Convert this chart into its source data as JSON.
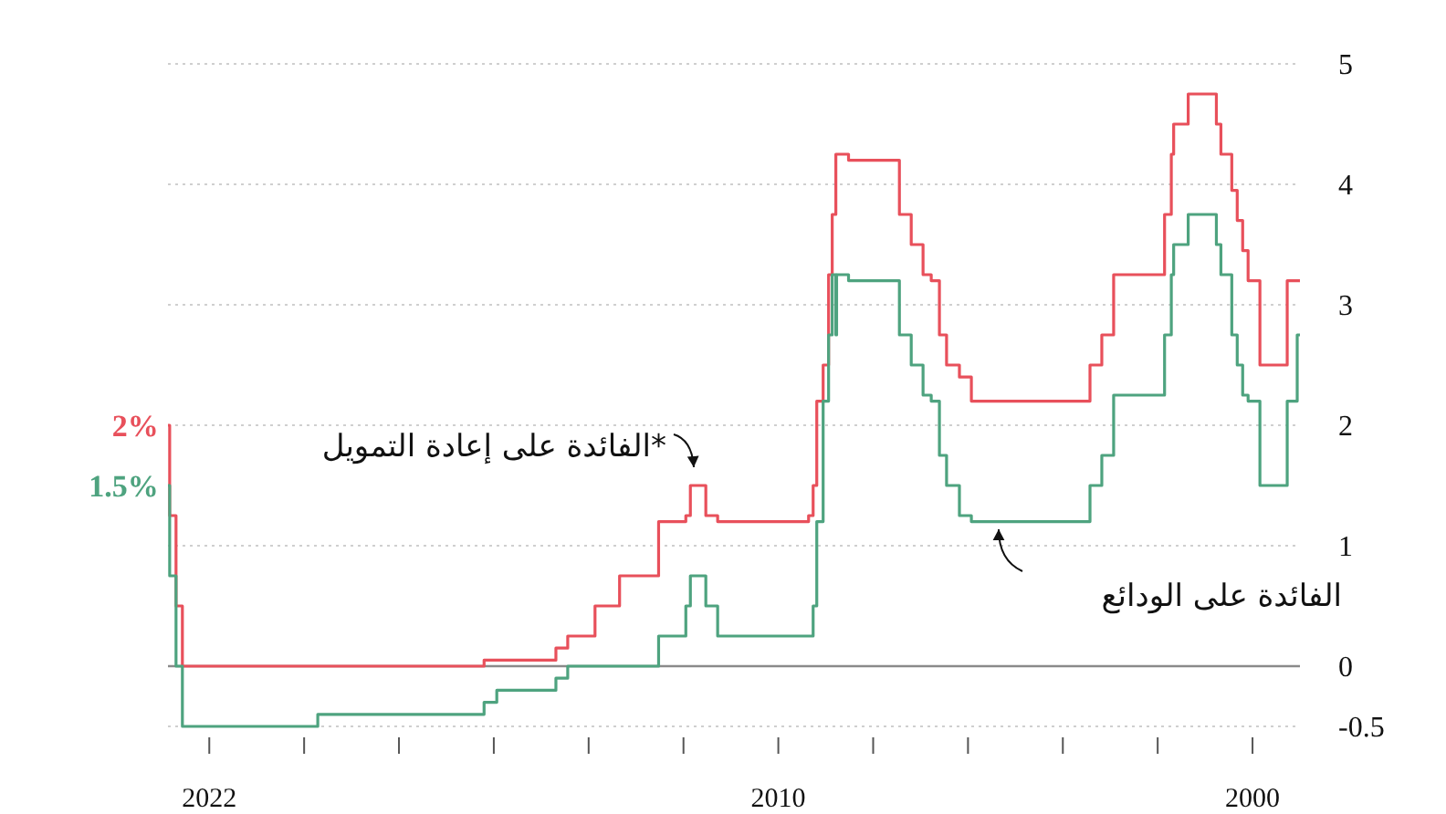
{
  "chart_data": {
    "type": "step",
    "xlim": [
      "2022-11-15",
      "1999-01-01"
    ],
    "xticks": [
      "2022",
      {
        "value": "2020",
        "label": null
      },
      {
        "value": "2018",
        "label": null
      },
      {
        "value": "2016",
        "label": null
      },
      {
        "value": "2014",
        "label": null
      },
      {
        "value": "2012",
        "label": null
      },
      "2010",
      {
        "value": "2008",
        "label": null
      },
      {
        "value": "2006",
        "label": null
      },
      {
        "value": "2004",
        "label": null
      },
      {
        "value": "2002",
        "label": null
      },
      "2000"
    ],
    "ylim": [
      -0.5,
      5
    ],
    "yticks": [
      5,
      4,
      3,
      2,
      1,
      0,
      -0.5
    ],
    "grid": "y",
    "ref_lines": [
      {
        "axis": "y",
        "value": 0,
        "color": "#8a8a8a"
      }
    ],
    "series": [
      {
        "name": "الفائدة على إعادة التمويل*",
        "color": "#e8505b",
        "x": [
          "1999-01-01",
          "1999-04-09",
          "1999-11-05",
          "2000-02-04",
          "2000-03-17",
          "2000-04-28",
          "2000-06-09",
          "2000-09-01",
          "2000-10-06",
          "2001-05-11",
          "2001-08-31",
          "2001-09-18",
          "2001-11-09",
          "2002-12-06",
          "2003-03-07",
          "2003-06-06",
          "2005-12-06",
          "2006-03-08",
          "2006-06-15",
          "2006-08-09",
          "2006-10-11",
          "2006-12-13",
          "2007-03-14",
          "2007-06-13",
          "2008-07-09",
          "2008-10-15",
          "2008-11-12",
          "2008-12-10",
          "2009-01-21",
          "2009-03-11",
          "2009-04-08",
          "2009-05-13",
          "2011-04-13",
          "2011-07-13",
          "2011-11-09",
          "2011-12-14",
          "2012-07-11",
          "2013-05-08",
          "2013-11-13",
          "2014-06-11",
          "2014-09-10",
          "2016-03-16",
          "2022-07-27",
          "2022-09-14",
          "2022-11-02"
        ],
        "values": [
          3.2,
          2.5,
          3.2,
          3.45,
          3.7,
          3.95,
          4.25,
          4.5,
          4.75,
          4.5,
          4.25,
          3.75,
          3.25,
          2.75,
          2.5,
          2.2,
          2.4,
          2.5,
          2.75,
          3.2,
          3.25,
          3.5,
          3.75,
          4.2,
          4.25,
          3.75,
          3.25,
          2.5,
          2.2,
          1.5,
          1.25,
          1.2,
          1.25,
          1.5,
          1.25,
          1.2,
          0.75,
          0.5,
          0.25,
          0.15,
          0.05,
          0,
          0.5,
          1.25,
          2
        ]
      },
      {
        "name": "الفائدة على الودائع",
        "color": "#4ea37f",
        "x": [
          "1999-01-01",
          "1999-01-22",
          "1999-04-09",
          "1999-11-05",
          "2000-02-04",
          "2000-03-17",
          "2000-04-28",
          "2000-06-09",
          "2000-09-01",
          "2000-10-06",
          "2001-05-11",
          "2001-08-31",
          "2001-09-18",
          "2001-11-09",
          "2002-12-06",
          "2003-03-07",
          "2003-06-06",
          "2005-12-06",
          "2006-03-08",
          "2006-06-15",
          "2006-08-09",
          "2006-10-11",
          "2006-12-13",
          "2007-03-14",
          "2007-06-13",
          "2008-07-09",
          "2008-10-09",
          "2008-10-15",
          "2008-11-12",
          "2008-12-10",
          "2009-01-21",
          "2009-03-11",
          "2009-04-08",
          "2011-04-13",
          "2011-07-13",
          "2011-11-09",
          "2011-12-14",
          "2012-07-11",
          "2014-06-11",
          "2014-09-10",
          "2015-12-09",
          "2016-03-16",
          "2019-09-18",
          "2022-07-27",
          "2022-09-14",
          "2022-11-02"
        ],
        "values": [
          2.75,
          2.2,
          1.5,
          2.2,
          2.25,
          2.5,
          2.75,
          3.25,
          3.5,
          3.75,
          3.5,
          3.25,
          2.75,
          2.25,
          1.75,
          1.5,
          1.2,
          1.25,
          1.5,
          1.75,
          2.2,
          2.25,
          2.5,
          2.75,
          3.2,
          3.25,
          2.75,
          3.25,
          2.75,
          2.2,
          1.2,
          0.5,
          0.25,
          0.5,
          0.75,
          0.5,
          0.25,
          0,
          -0.1,
          -0.2,
          -0.3,
          -0.4,
          -0.5,
          0,
          0.75,
          1.5
        ]
      }
    ],
    "annotations": [
      {
        "text": "2%",
        "x": "2022-11-02",
        "y": 2
      },
      {
        "text": "1.5%",
        "x": "2022-11-02",
        "y": 1.5
      }
    ]
  }
}
